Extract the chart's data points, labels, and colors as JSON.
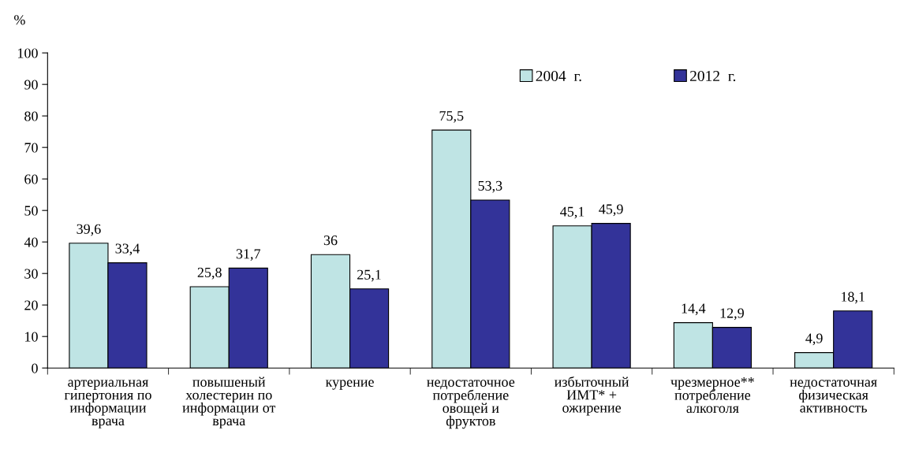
{
  "chart_data": {
    "type": "bar",
    "ylabel": "%",
    "categories": [
      "артериальная\nгипертония по\nинформации\nврача",
      "повышеный\nхолестерин по\nинформации от\nврача",
      "курение",
      "недостаточное\nпотребление\nовощей и\nфруктов",
      "избыточный\nИМТ* +\nожирение",
      "чрезмерное**\nпотребление\nалкоголя",
      "недостаточная\nфизическая\nактивность"
    ],
    "series": [
      {
        "name": "2004  г.",
        "color": "#bfe4e4",
        "values": [
          39.6,
          25.8,
          36,
          75.5,
          45.1,
          14.4,
          4.9
        ],
        "value_labels": [
          "39,6",
          "25,8",
          "36",
          "75,5",
          "45,1",
          "14,4",
          "4,9"
        ]
      },
      {
        "name": "2012  г.",
        "color": "#333399",
        "values": [
          33.4,
          31.7,
          25.1,
          53.3,
          45.9,
          12.9,
          18.1
        ],
        "value_labels": [
          "33,4",
          "31,7",
          "25,1",
          "53,3",
          "45,9",
          "12,9",
          "18,1"
        ]
      }
    ],
    "ylim": [
      0,
      100
    ],
    "yticks": [
      0,
      10,
      20,
      30,
      40,
      50,
      60,
      70,
      80,
      90,
      100
    ],
    "grid": false,
    "legend": "top right"
  }
}
